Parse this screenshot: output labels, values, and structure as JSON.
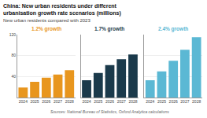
{
  "chart_data": {
    "type": "bar",
    "title": "China: New urban residents under different urbanisation growth rate scenarios (millions)",
    "subtitle": "New urban residents compared with 2023",
    "categories": [
      "2024",
      "2025",
      "2026",
      "2027",
      "2028"
    ],
    "series": [
      {
        "name": "1.2% growth",
        "color": "#E8961E",
        "values": [
          19,
          30,
          38,
          44,
          52
        ]
      },
      {
        "name": "1.7% growth",
        "color": "#1B3A4B",
        "values": [
          33,
          47,
          62,
          73,
          82
        ]
      },
      {
        "name": "2.4% growth",
        "color": "#5BB8D4",
        "values": [
          33,
          50,
          70,
          91,
          115
        ]
      }
    ],
    "ylim": [
      0,
      120
    ],
    "yticks": [
      40,
      80,
      120
    ],
    "grid": true,
    "annotations": [
      "Sources: National Bureau of Statistics, Oxford Analytica calculations"
    ]
  }
}
